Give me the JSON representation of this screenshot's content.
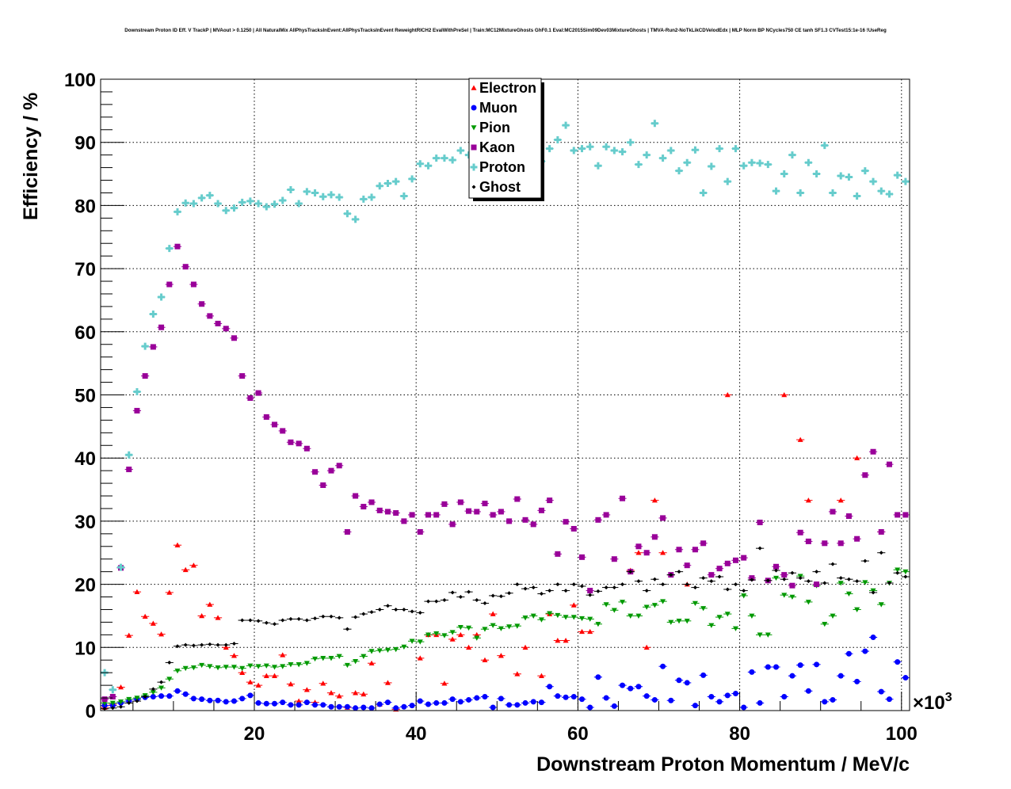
{
  "chart_data": {
    "type": "scatter",
    "title": "Downstream Proton ID Eff. V TrackP | MVAout > 0.1250 | All NaturalMix AllPhysTracksInEvent:AllPhysTracksInEvent ReweightRICH2 EvalWithPreSel | Train:MC12MixtureGhosts GhF0.1 Eval:MC2015Sim09Dev03MixtureGhosts | TMVA-Run2-NoTkLikCDVelodEdx | MLP Norm BP NCycles750 CE tanh SF1.3 CVTest15:1e-16 !UseReg",
    "xlabel": "Downstream Proton Momentum / MeV/c",
    "ylabel": "Efficiency / %",
    "x_exponent_label": "×10",
    "x_exponent_power": "3",
    "xlim": [
      1,
      101
    ],
    "ylim": [
      0,
      100
    ],
    "x_ticks": [
      "20",
      "40",
      "60",
      "80",
      "100"
    ],
    "y_ticks": [
      "0",
      "10",
      "20",
      "30",
      "40",
      "50",
      "60",
      "70",
      "80",
      "90",
      "100"
    ],
    "grid": true,
    "legend_position": "top-center",
    "bin_first_center": 1.5,
    "bin_width": 1,
    "series": [
      {
        "name": "Electron",
        "color": "#ff0000",
        "marker": "triangle-up",
        "values": [
          0.5,
          1.0,
          3.7,
          11.9,
          18.8,
          14.9,
          13.8,
          12.1,
          18.7,
          26.2,
          22.3,
          23.0,
          15.0,
          16.8,
          14.7,
          10.0,
          8.7,
          6.0,
          4.5,
          4.0,
          5.5,
          5.5,
          8.8,
          4.2,
          1.5,
          3.3,
          1.3,
          4.3,
          2.8,
          2.3,
          0.5,
          2.8,
          2.6,
          7.5,
          1.0,
          4.4,
          0.2,
          0,
          0,
          8.3,
          12.0,
          12.0,
          4.3,
          11.3,
          12.0,
          10.0,
          12.0,
          8.0,
          15.3,
          8.7,
          0,
          5.8,
          10.0,
          0,
          5.5,
          15.3,
          11.1,
          11.1,
          16.7,
          12.5,
          12.5,
          0,
          0,
          0,
          0,
          22.2,
          25.0,
          10.0,
          33.3,
          25.0,
          0,
          0,
          20.0,
          0,
          0,
          0,
          0,
          50.0,
          0,
          0,
          0,
          0,
          0,
          0,
          50.0,
          0,
          42.9,
          33.3,
          0,
          0,
          0,
          33.3,
          0,
          40.0,
          0,
          0,
          28.3,
          0,
          0,
          0
        ]
      },
      {
        "name": "Muon",
        "color": "#0000ff",
        "marker": "circle",
        "values": [
          0.8,
          0.8,
          1.2,
          1.5,
          1.8,
          2.1,
          2.2,
          2.3,
          2.3,
          3.1,
          2.6,
          1.9,
          1.8,
          1.6,
          1.6,
          1.4,
          1.5,
          1.9,
          2.4,
          1.2,
          1.1,
          1.1,
          1.3,
          0.9,
          0.9,
          1.3,
          0.9,
          0.9,
          0.6,
          0.6,
          0.6,
          0.4,
          0.5,
          0.4,
          1.0,
          1.3,
          0.4,
          0.6,
          0.8,
          1.5,
          1.0,
          1.2,
          1.2,
          1.8,
          1.4,
          1.7,
          2.0,
          2.2,
          0.5,
          1.9,
          0.9,
          0.9,
          1.2,
          1.4,
          1.3,
          3.8,
          2.3,
          2.1,
          2.2,
          1.8,
          0.5,
          5.3,
          2.0,
          0.7,
          4.0,
          3.5,
          3.8,
          2.3,
          1.7,
          7.0,
          1.6,
          4.8,
          4.4,
          0.8,
          5.6,
          2.2,
          1.4,
          2.4,
          2.7,
          0.5,
          6.1,
          1.2,
          6.9,
          6.9,
          2.2,
          5.5,
          7.2,
          3.1,
          7.3,
          1.4,
          1.7,
          5.5,
          9.0,
          4.6,
          9.4,
          11.6,
          3.0,
          1.8,
          7.7,
          5.2
        ]
      },
      {
        "name": "Pion",
        "color": "#009900",
        "marker": "triangle-down",
        "values": [
          1.2,
          1.2,
          1.4,
          1.8,
          2.0,
          2.4,
          2.9,
          3.6,
          5.0,
          6.3,
          6.7,
          6.8,
          7.2,
          7.0,
          6.8,
          6.9,
          6.9,
          6.7,
          7.1,
          7.0,
          7.1,
          6.9,
          7.0,
          7.3,
          7.3,
          7.5,
          8.2,
          8.3,
          8.3,
          8.6,
          7.2,
          7.8,
          8.6,
          9.4,
          9.5,
          9.6,
          9.7,
          10.1,
          11.0,
          10.9,
          12.0,
          12.2,
          11.9,
          12.4,
          13.2,
          13.1,
          11.5,
          12.9,
          13.5,
          13.0,
          13.3,
          13.4,
          14.7,
          15.0,
          14.4,
          15.4,
          15.1,
          14.8,
          14.8,
          14.6,
          14.5,
          13.7,
          16.8,
          15.9,
          17.2,
          15.0,
          15.0,
          16.4,
          16.7,
          17.3,
          14.0,
          14.2,
          14.2,
          17.0,
          16.2,
          13.5,
          14.8,
          15.3,
          13.0,
          18.2,
          15.0,
          12.0,
          12.0,
          21.0,
          18.3,
          18.0,
          21.3,
          17.2,
          19.8,
          13.7,
          15.0,
          20.2,
          18.5,
          16.0,
          20.3,
          19.0,
          16.8,
          20.2,
          22.3,
          22.0
        ]
      },
      {
        "name": "Kaon",
        "color": "#990099",
        "marker": "square",
        "values": [
          1.8,
          2.2,
          22.6,
          38.2,
          47.5,
          53.0,
          57.6,
          60.7,
          67.5,
          73.5,
          70.3,
          67.5,
          64.4,
          62.5,
          61.3,
          60.5,
          59.0,
          53.0,
          49.5,
          50.3,
          46.5,
          45.3,
          44.3,
          42.5,
          42.3,
          41.5,
          37.8,
          35.7,
          38.0,
          38.8,
          28.3,
          34.0,
          32.3,
          33.0,
          31.7,
          31.5,
          31.3,
          30.0,
          31.0,
          28.3,
          31.0,
          31.0,
          32.7,
          29.5,
          33.0,
          31.6,
          31.5,
          32.8,
          31.0,
          31.5,
          30.0,
          33.5,
          30.2,
          29.5,
          31.7,
          33.3,
          24.8,
          29.9,
          28.8,
          24.3,
          19.0,
          30.2,
          31.0,
          24.0,
          33.6,
          22.0,
          26.0,
          25.0,
          27.5,
          30.5,
          21.5,
          25.5,
          23.0,
          25.5,
          26.5,
          21.5,
          22.5,
          23.3,
          23.8,
          24.2,
          21.0,
          29.8,
          20.6,
          22.8,
          21.5,
          19.8,
          28.2,
          26.8,
          20.0,
          26.5,
          31.5,
          26.5,
          30.8,
          27.2,
          37.3,
          41.0,
          28.3,
          39.0,
          31.0,
          31.0
        ]
      },
      {
        "name": "Proton",
        "color": "#66cccc",
        "marker": "cross",
        "values": [
          6.0,
          3.3,
          22.7,
          40.5,
          50.5,
          57.7,
          62.8,
          65.5,
          73.2,
          79.0,
          80.4,
          80.3,
          81.2,
          81.6,
          80.3,
          79.2,
          79.6,
          80.5,
          80.7,
          80.3,
          79.8,
          80.2,
          80.8,
          82.5,
          80.3,
          82.2,
          82.0,
          81.4,
          81.7,
          81.3,
          78.7,
          77.8,
          81.0,
          81.3,
          83.1,
          83.5,
          83.8,
          81.5,
          84.2,
          86.6,
          86.3,
          87.5,
          87.5,
          87.2,
          88.7,
          88.0,
          89.5,
          88.7,
          86.2,
          87.5,
          85.6,
          87.8,
          88.5,
          87.0,
          87.0,
          89.0,
          90.4,
          92.7,
          88.7,
          89.0,
          89.3,
          86.3,
          89.3,
          88.7,
          88.5,
          90.0,
          86.5,
          88.0,
          93.0,
          87.5,
          88.7,
          85.5,
          86.8,
          88.8,
          82.0,
          86.2,
          89.0,
          83.8,
          89.0,
          86.3,
          86.8,
          86.7,
          86.5,
          82.3,
          85.0,
          88.0,
          82.0,
          86.8,
          85.0,
          89.5,
          82.0,
          84.7,
          84.5,
          81.5,
          85.5,
          83.8,
          82.3,
          81.8,
          84.8,
          83.8
        ]
      },
      {
        "name": "Ghost",
        "color": "#000000",
        "marker": "diamond",
        "values": [
          0.3,
          0.4,
          0.6,
          1.2,
          1.5,
          2.2,
          3.4,
          4.5,
          7.6,
          10.2,
          10.4,
          10.3,
          10.4,
          10.5,
          10.4,
          10.4,
          10.6,
          14.3,
          14.3,
          14.2,
          13.9,
          13.7,
          14.3,
          14.5,
          14.5,
          14.3,
          14.6,
          14.9,
          14.9,
          14.7,
          12.9,
          14.8,
          15.3,
          15.6,
          16.0,
          16.6,
          16.0,
          16.0,
          15.7,
          15.5,
          17.3,
          17.3,
          17.5,
          18.7,
          18.0,
          18.8,
          17.5,
          17.0,
          18.2,
          18.1,
          18.6,
          20.0,
          19.3,
          19.5,
          18.5,
          19.0,
          20.0,
          19.0,
          20.0,
          19.7,
          18.3,
          18.9,
          19.5,
          19.5,
          20.0,
          22.0,
          20.5,
          19.0,
          20.8,
          20.0,
          21.5,
          22.0,
          20.0,
          19.5,
          21.0,
          20.5,
          21.2,
          19.2,
          20.0,
          19.0,
          20.7,
          25.7,
          20.6,
          22.2,
          20.8,
          21.8,
          21.0,
          20.5,
          22.0,
          20.2,
          23.2,
          21.0,
          20.8,
          20.5,
          23.7,
          18.7,
          25.0,
          20.2,
          21.8,
          21.2
        ]
      }
    ]
  }
}
